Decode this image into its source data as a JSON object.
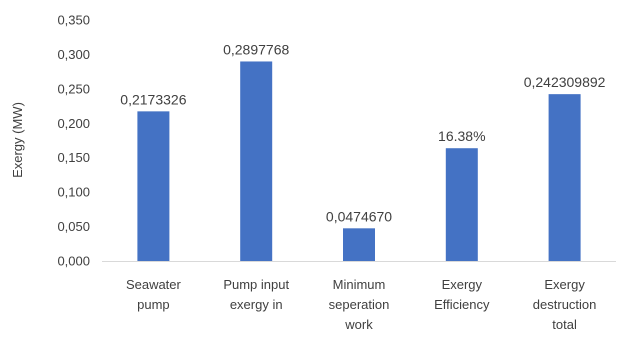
{
  "chart_data": {
    "type": "bar",
    "categories": [
      [
        "Seawater",
        "pump"
      ],
      [
        "Pump input",
        "exergy in"
      ],
      [
        "Minimum",
        "seperation",
        "work"
      ],
      [
        "Exergy",
        "Efficiency"
      ],
      [
        "Exergy",
        "destruction",
        "total"
      ]
    ],
    "values": [
      0.2173326,
      0.2897768,
      0.047467,
      0.1638,
      0.242309892
    ],
    "data_labels": [
      "0,2173326",
      "0,2897768",
      "0,0474670",
      "16.38%",
      "0,242309892"
    ],
    "ylabel": "Exergy (MW)",
    "ylim": [
      0,
      0.35
    ],
    "yticks": [
      "0,000",
      "0,050",
      "0,100",
      "0,150",
      "0,200",
      "0,250",
      "0,300",
      "0,350"
    ],
    "bar_color": "#4472C4",
    "grid": false
  }
}
